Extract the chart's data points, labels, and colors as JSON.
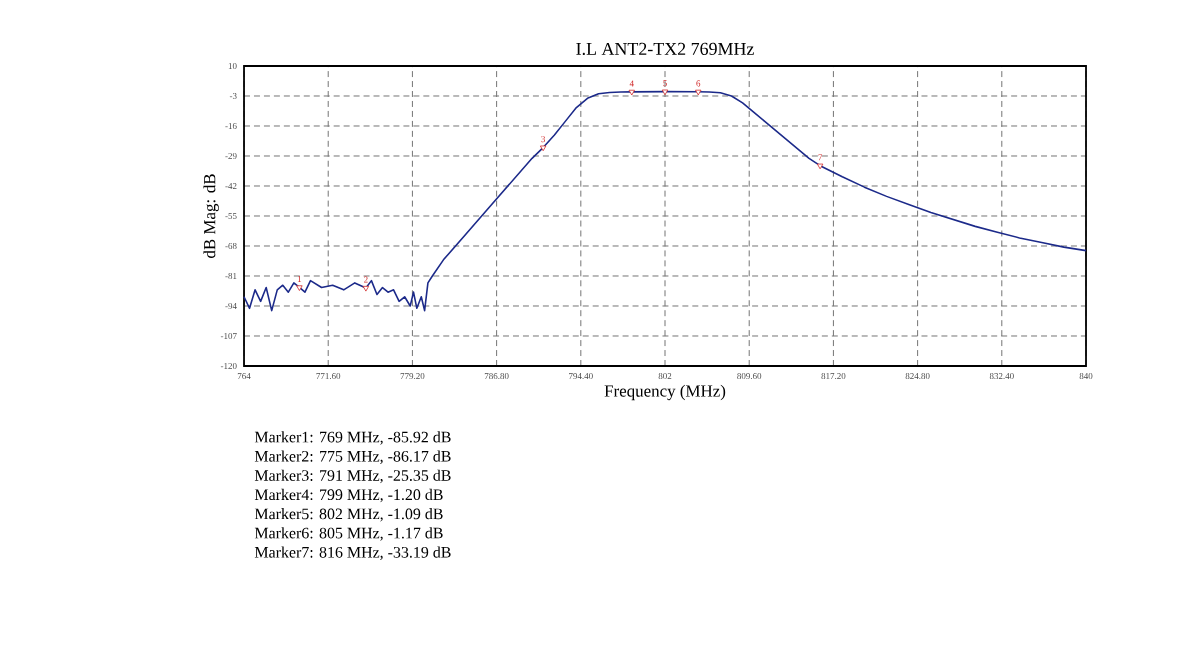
{
  "chart_data": {
    "type": "line",
    "title": "I.L  ANT2-TX2  769MHz",
    "xlabel": "Frequency (MHz)",
    "ylabel": "dB Mag: dB",
    "xlim": [
      764,
      840
    ],
    "ylim": [
      -120,
      10
    ],
    "xticks": [
      764,
      {
        "value": 771.6,
        "label": "771.60"
      },
      {
        "value": 779.2,
        "label": "779.20"
      },
      {
        "value": 786.8,
        "label": "786.80"
      },
      {
        "value": 794.4,
        "label": "794.40"
      },
      802,
      {
        "value": 809.6,
        "label": "809.60"
      },
      {
        "value": 817.2,
        "label": "817.20"
      },
      {
        "value": 824.8,
        "label": "824.80"
      },
      {
        "value": 832.4,
        "label": "832.40"
      },
      840
    ],
    "yticks": [
      10,
      -3,
      -16,
      -29,
      -42,
      -55,
      -68,
      -81,
      -94,
      -107,
      -120
    ],
    "grid": true,
    "series": [
      {
        "color": "#1c2a8a",
        "marker": "none",
        "line_style": "solid",
        "x": [
          764,
          764.5,
          765,
          765.5,
          766,
          766.5,
          767,
          767.5,
          768,
          768.5,
          769,
          769.5,
          770,
          771,
          772,
          773,
          774,
          775,
          775.5,
          776,
          776.5,
          777,
          777.5,
          778,
          778.5,
          779,
          779.3,
          779.6,
          780,
          780.3,
          780.6,
          781,
          782,
          784,
          786,
          788,
          790,
          791,
          792,
          793,
          794,
          795,
          796,
          797,
          798,
          799,
          802,
          805,
          806,
          807,
          808,
          809,
          810,
          811,
          812,
          813,
          814,
          815,
          816,
          818,
          820,
          822,
          824,
          826,
          828,
          830,
          832,
          834,
          836,
          838,
          840
        ],
        "values": [
          -90,
          -95,
          -87,
          -92,
          -86,
          -96,
          -87,
          -85,
          -88,
          -84,
          -85.92,
          -88,
          -83,
          -86,
          -85,
          -87,
          -84,
          -86.17,
          -83,
          -89,
          -86,
          -88,
          -87,
          -92,
          -90,
          -94,
          -88,
          -95,
          -90,
          -96,
          -84,
          -81,
          -74,
          -63,
          -52,
          -41,
          -30,
          -25.35,
          -20,
          -14,
          -8,
          -4,
          -2,
          -1.5,
          -1.3,
          -1.2,
          -1.09,
          -1.17,
          -1.3,
          -1.6,
          -3,
          -6,
          -10,
          -14,
          -18,
          -22,
          -26,
          -30,
          -33.19,
          -38,
          -42.5,
          -46.5,
          -50,
          -53.5,
          -56.5,
          -59.5,
          -62,
          -64.5,
          -66.5,
          -68.5,
          -70
        ]
      },
      {
        "type": "scatter",
        "color": "#d02828",
        "marker": "triangle",
        "x": [
          769,
          775,
          791,
          799,
          802,
          805,
          816
        ],
        "values": [
          -85.92,
          -86.17,
          -25.35,
          -1.2,
          -1.09,
          -1.17,
          -33.19
        ]
      }
    ],
    "annotations": [
      {
        "text": "1",
        "x": 769,
        "y": -85.92
      },
      {
        "text": "2",
        "x": 775,
        "y": -86.17
      },
      {
        "text": "3",
        "x": 791,
        "y": -25.35
      },
      {
        "text": "4",
        "x": 799,
        "y": -1.2
      },
      {
        "text": "5",
        "x": 802,
        "y": -1.09
      },
      {
        "text": "6",
        "x": 805,
        "y": -1.17
      },
      {
        "text": "7",
        "x": 816,
        "y": -33.19
      },
      "Marker1:  769 MHz,   -85.92 dB",
      "Marker2:  775 MHz,   -86.17 dB",
      "Marker3:  791 MHz,   -25.35 dB",
      "Marker4:  799 MHz,   -1.20 dB",
      "Marker5:  802 MHz,   -1.09 dB",
      "Marker6:  805 MHz,   -1.17 dB",
      "Marker7:  816 MHz,   -33.19 dB"
    ]
  }
}
